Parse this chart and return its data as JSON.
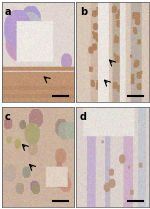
{
  "figsize": [
    1.5,
    2.09
  ],
  "dpi": 100,
  "panels": [
    "a",
    "b",
    "c",
    "d"
  ],
  "background": "#ffffff",
  "border_color": "#000000",
  "label_fontsize": 7,
  "panel_colors": {
    "a": {
      "base": [
        0.82,
        0.75,
        0.68
      ],
      "tissue": [
        0.7,
        0.6,
        0.55
      ]
    },
    "b": {
      "base": [
        0.8,
        0.72,
        0.65
      ],
      "tissue": [
        0.72,
        0.6,
        0.52
      ]
    },
    "c": {
      "base": [
        0.78,
        0.68,
        0.6
      ],
      "tissue": [
        0.75,
        0.62,
        0.52
      ]
    },
    "d": {
      "base": [
        0.8,
        0.74,
        0.68
      ],
      "tissue": [
        0.68,
        0.62,
        0.58
      ]
    }
  }
}
